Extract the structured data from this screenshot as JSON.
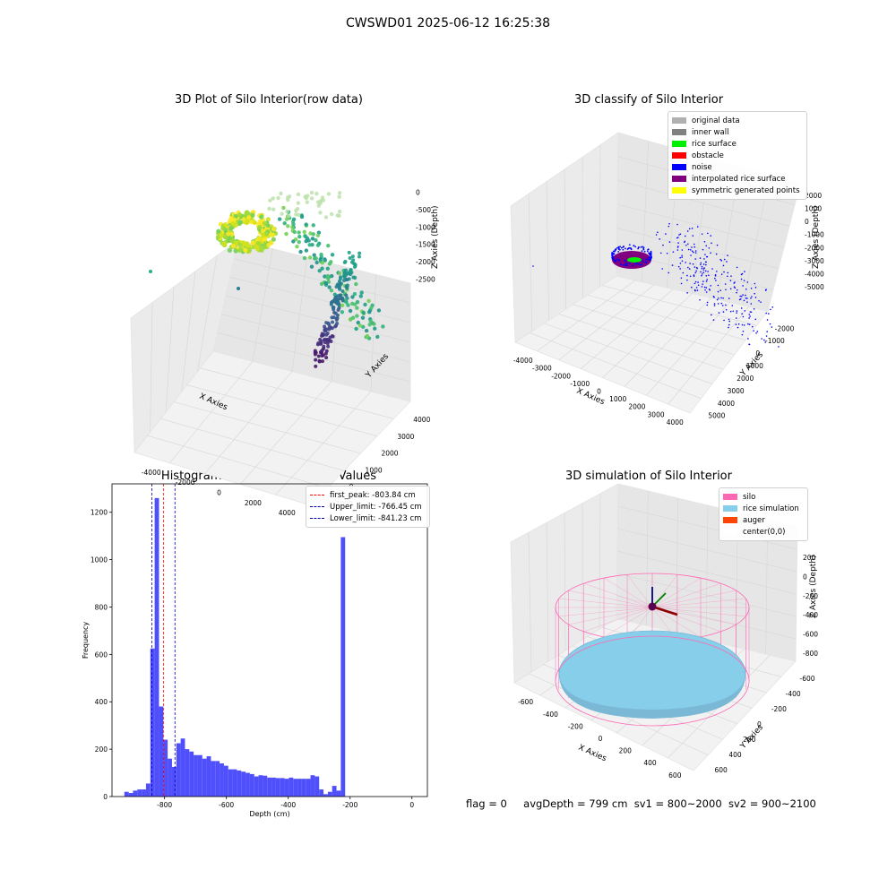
{
  "suptitle": "CWSWD01 2025-06-12 16:25:38",
  "status_line": {
    "flag": "flag = 0",
    "avg_depth": "avgDepth = 799 cm",
    "sv1": "sv1 = 800~2000",
    "sv2": "sv2 = 900~2100"
  },
  "chart_data": [
    {
      "type": "scatter",
      "title": "3D Plot of Silo Interior(row data)",
      "xlabel": "X Axies",
      "ylabel": "Y Axies",
      "zlabel": "Z Axies (Depth)",
      "x_ticks": [
        "-4000",
        "-2000",
        "0",
        "2000",
        "4000"
      ],
      "y_ticks": [
        "-1000",
        "0",
        "1000",
        "2000",
        "3000",
        "4000"
      ],
      "z_ticks": [
        "0",
        "-500",
        "-1000",
        "-1500",
        "-2000",
        "-2500"
      ],
      "colormap": "viridis",
      "clusters": [
        {
          "name": "rice surface ring",
          "x": -1500,
          "y": 1200,
          "z": -800,
          "color": "#e3e418"
        },
        {
          "name": "wall column",
          "x": 1500,
          "y": 1000,
          "z": -1800,
          "color": "#21918c"
        }
      ]
    },
    {
      "type": "scatter",
      "title": "3D classify of Silo Interior",
      "xlabel": "X Axies",
      "ylabel": "Y Axies",
      "zlabel": "Z Axies (Depth)",
      "x_ticks": [
        "-4000",
        "-3000",
        "-2000",
        "-1000",
        "0",
        "1000",
        "2000",
        "3000",
        "4000"
      ],
      "y_ticks": [
        "-2000",
        "-1000",
        "0",
        "1000",
        "2000",
        "3000",
        "4000",
        "5000"
      ],
      "z_ticks": [
        "2000",
        "1000",
        "0",
        "-1000",
        "-2000",
        "-3000",
        "-4000",
        "-5000"
      ],
      "legend": [
        {
          "label": "original data",
          "color": "#b0b0b0"
        },
        {
          "label": "inner wall",
          "color": "#808080"
        },
        {
          "label": "rice surface",
          "color": "#00ee00"
        },
        {
          "label": "obstacle",
          "color": "#ff0000"
        },
        {
          "label": "noise",
          "color": "#0000ff"
        },
        {
          "label": "interpolated rice surface",
          "color": "#800080"
        },
        {
          "label": "symmetric generated points",
          "color": "#ffff00"
        }
      ]
    },
    {
      "type": "bar",
      "title": "Histogram of Z-Axies (Height) Values",
      "xlabel": "Depth (cm)",
      "ylabel": "Frequency",
      "xlim": [
        -970,
        50
      ],
      "ylim": [
        0,
        1320
      ],
      "x_ticks": [
        -800,
        -600,
        -400,
        -200,
        0
      ],
      "y_ticks": [
        0,
        200,
        400,
        600,
        800,
        1000,
        1200
      ],
      "bar_color": "#4f4ffb",
      "bin_start": -930,
      "bin_width": 14,
      "values": [
        20,
        15,
        25,
        30,
        30,
        55,
        625,
        1260,
        380,
        240,
        160,
        125,
        225,
        245,
        200,
        190,
        175,
        175,
        160,
        170,
        150,
        150,
        140,
        130,
        115,
        115,
        110,
        105,
        100,
        95,
        85,
        90,
        88,
        80,
        80,
        78,
        78,
        75,
        80,
        75,
        75,
        75,
        75,
        90,
        85,
        30,
        10,
        20,
        45,
        25,
        1095
      ],
      "lines": [
        {
          "label": "first_peak: -803.84 cm",
          "x": -803.84,
          "color": "#ff0000"
        },
        {
          "label": "Upper_limit: -766.45 cm",
          "x": -766.45,
          "color": "#0000b0"
        },
        {
          "label": "Lower_limit: -841.23 cm",
          "x": -841.23,
          "color": "#0000b0"
        }
      ],
      "legend_position": "top-right"
    },
    {
      "type": "surface",
      "title": "3D simulation of Silo Interior",
      "xlabel": "X Axies",
      "ylabel": "Y Axies",
      "zlabel": "Z Axies (Depth)",
      "x_ticks": [
        "-600",
        "-400",
        "-200",
        "0",
        "200",
        "400",
        "600"
      ],
      "y_ticks": [
        "-600",
        "-400",
        "-200",
        "0",
        "200",
        "400",
        "600"
      ],
      "z_ticks": [
        "200",
        "0",
        "-200",
        "-400",
        "-600",
        "-800"
      ],
      "legend": [
        {
          "label": "silo",
          "color": "#ff69b4"
        },
        {
          "label": "rice simulation",
          "color": "#87ceeb"
        },
        {
          "label": "auger",
          "color": "#ff4500"
        },
        {
          "label": "center(0,0)",
          "color": "#ffffff"
        }
      ]
    }
  ]
}
